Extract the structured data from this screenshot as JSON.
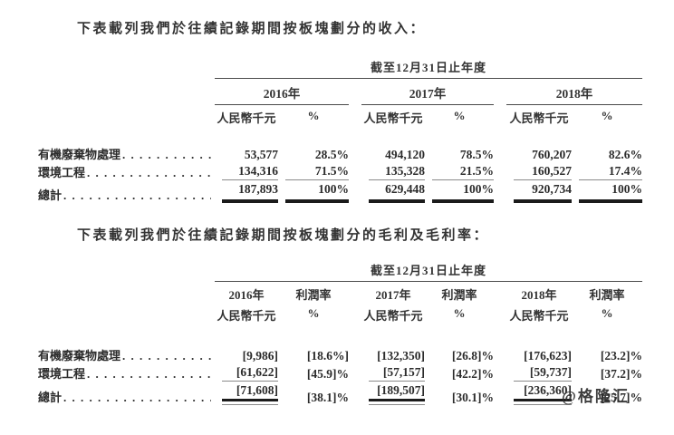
{
  "intro": {
    "revenue": "下表載列我們於往績記錄期間按板塊劃分的收入：",
    "margin": "下表載列我們於往績記錄期間按板塊劃分的毛利及毛利率："
  },
  "leader": ". . . . . . . . . . . . . . . . . . . . . . . . . . . . . . . . . . . . . . . .",
  "watermark": "@格隆汇",
  "revenue_table": {
    "period_header": "截至12月31日止年度",
    "years": [
      "2016年",
      "2017年",
      "2018年"
    ],
    "unit_label": "人民幣千元",
    "pct_label": "%",
    "rows": [
      {
        "label": "有機廢棄物處理",
        "cells": [
          "53,577",
          "28.5%",
          "494,120",
          "78.5%",
          "760,207",
          "82.6%"
        ]
      },
      {
        "label": "環境工程",
        "cells": [
          "134,316",
          "71.5%",
          "135,328",
          "21.5%",
          "160,527",
          "17.4%"
        ]
      },
      {
        "label": "總計",
        "cells": [
          "187,893",
          "100%",
          "629,448",
          "100%",
          "920,734",
          "100%"
        ]
      }
    ]
  },
  "margin_table": {
    "period_header": "截至12月31日止年度",
    "col_top": [
      "2016年",
      "利潤率",
      "2017年",
      "利潤率",
      "2018年",
      "利潤率"
    ],
    "col_bottom": [
      "人民幣千元",
      "%",
      "人民幣千元",
      "%",
      "人民幣千元",
      "%"
    ],
    "rows": [
      {
        "label": "有機廢棄物處理",
        "cells": [
          "[9,986]",
          "[18.6%]",
          "[132,350]",
          "[26.8]%",
          "[176,623]",
          "[23.2]%"
        ]
      },
      {
        "label": "環境工程",
        "cells": [
          "[61,622]",
          "[45.9]%",
          "[57,157]",
          "[42.2]%",
          "[59,737]",
          "[37.2]%"
        ]
      },
      {
        "label": "總計",
        "cells": [
          "[71,608]",
          "[38.1]%",
          "[189,507]",
          "[30.1]%",
          "[236,360]",
          "[25.7]%"
        ]
      }
    ]
  }
}
